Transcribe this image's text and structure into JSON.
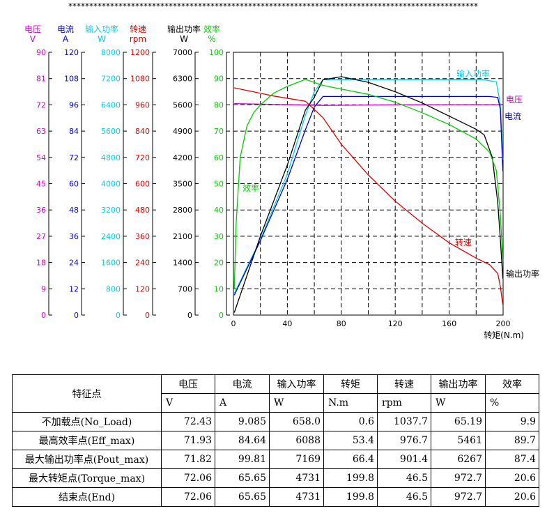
{
  "banner": "**************************************************************************************************",
  "chart_data": {
    "type": "line",
    "xlabel": "转矩(N.m)",
    "xlim": [
      0,
      200
    ],
    "x_ticks": [
      "0",
      "40",
      "80",
      "120",
      "160",
      "200"
    ],
    "grid": true,
    "y_axes": [
      {
        "name": "电压",
        "unit": "V",
        "color": "#cc00cc",
        "range": [
          0,
          90
        ],
        "ticks": [
          "0",
          "9",
          "18",
          "27",
          "36",
          "45",
          "54",
          "63",
          "72",
          "81",
          "90"
        ]
      },
      {
        "name": "电流",
        "unit": "A",
        "color": "#0000cc",
        "range": [
          0,
          120
        ],
        "ticks": [
          "0",
          "12",
          "24",
          "36",
          "48",
          "60",
          "72",
          "84",
          "96",
          "108",
          "120"
        ]
      },
      {
        "name": "输入功率",
        "unit": "W",
        "color": "#00ccee",
        "range": [
          0,
          8000
        ],
        "ticks": [
          "0",
          "800",
          "1600",
          "2400",
          "3200",
          "4000",
          "4800",
          "5600",
          "6400",
          "7200",
          "8000"
        ]
      },
      {
        "name": "转速",
        "unit": "rpm",
        "color": "#dd0000",
        "range": [
          0,
          1200
        ],
        "ticks": [
          "0",
          "120",
          "240",
          "360",
          "480",
          "600",
          "720",
          "840",
          "960",
          "1080",
          "1200"
        ]
      },
      {
        "name": "输出功率",
        "unit": "W",
        "color": "#000000",
        "range": [
          0,
          7000
        ],
        "ticks": [
          "0",
          "700",
          "1400",
          "2100",
          "2800",
          "3500",
          "4200",
          "4900",
          "5600",
          "6300",
          "7000"
        ]
      },
      {
        "name": "效率",
        "unit": "%",
        "color": "#00cc00",
        "range": [
          0,
          100
        ],
        "ticks": [
          "0",
          "10",
          "20",
          "30",
          "40",
          "50",
          "60",
          "70",
          "80",
          "90",
          "100"
        ]
      }
    ],
    "series": [
      {
        "name": "输入功率",
        "axis": 2,
        "color": "#00ccee",
        "label": "输入功率",
        "x": [
          0.6,
          20,
          40,
          53.4,
          60,
          66.4,
          80,
          120,
          160,
          185,
          195,
          198,
          199.8
        ],
        "y": [
          658,
          2300,
          4300,
          6088,
          6800,
          7169,
          7169,
          7169,
          7169,
          7169,
          7100,
          6400,
          4731
        ]
      },
      {
        "name": "电压",
        "axis": 0,
        "color": "#cc00cc",
        "label": "电压",
        "x": [
          0.6,
          53.4,
          66.4,
          120,
          199.8
        ],
        "y": [
          72.43,
          71.93,
          71.82,
          72.0,
          72.06
        ]
      },
      {
        "name": "电流",
        "axis": 1,
        "color": "#0000cc",
        "label": "电流",
        "x": [
          0.6,
          20,
          40,
          53.4,
          60,
          66.4,
          80,
          120,
          160,
          190,
          196,
          198,
          199.8
        ],
        "y": [
          9.085,
          34,
          62,
          84.64,
          95,
          99.81,
          99.81,
          99.81,
          99.81,
          99.81,
          99.4,
          94,
          65.65
        ]
      },
      {
        "name": "转速",
        "axis": 3,
        "color": "#dd0000",
        "label": "转速",
        "x": [
          0.6,
          30,
          53.4,
          66.4,
          80,
          100,
          120,
          140,
          160,
          180,
          190,
          196,
          198,
          199.8
        ],
        "y": [
          1037.7,
          1000,
          976.7,
          901.4,
          780,
          640,
          520,
          420,
          330,
          260,
          230,
          190,
          130,
          46.5
        ]
      },
      {
        "name": "输出功率",
        "axis": 4,
        "color": "#000000",
        "label": "输出功率",
        "x": [
          0.6,
          20,
          40,
          53.4,
          60,
          66.4,
          80,
          100,
          120,
          140,
          160,
          180,
          186,
          192,
          196,
          198,
          199.8
        ],
        "y": [
          65.19,
          2100,
          4000,
          5461,
          5800,
          6267,
          6350,
          6200,
          5950,
          5650,
          5300,
          4950,
          4800,
          4200,
          3000,
          2000,
          972.7
        ]
      },
      {
        "name": "效率",
        "axis": 5,
        "color": "#00cc00",
        "label": "效率",
        "x": [
          0.6,
          2,
          5,
          10,
          15,
          20,
          30,
          40,
          53.4,
          60,
          66.4,
          80,
          100,
          120,
          140,
          160,
          180,
          190,
          195,
          198,
          199.8
        ],
        "y": [
          9.9,
          35,
          60,
          72,
          77,
          80,
          84.5,
          87,
          89.7,
          88.5,
          87.4,
          86,
          84,
          81,
          77,
          72.5,
          67,
          62,
          55,
          38,
          20.6
        ]
      }
    ]
  },
  "table": {
    "row_header": "特征点",
    "columns": [
      {
        "name": "电压",
        "unit": "V"
      },
      {
        "name": "电流",
        "unit": "A"
      },
      {
        "name": "输入功率",
        "unit": "W"
      },
      {
        "name": "转矩",
        "unit": "N.m"
      },
      {
        "name": "转速",
        "unit": "rpm"
      },
      {
        "name": "输出功率",
        "unit": "W"
      },
      {
        "name": "效率",
        "unit": "%"
      }
    ],
    "rows": [
      {
        "label": "不加载点(No_Load)",
        "values": [
          "72.43",
          "9.085",
          "658.0",
          "0.6",
          "1037.7",
          "65.19",
          "9.9"
        ]
      },
      {
        "label": "最高效率点(Eff_max)",
        "values": [
          "71.93",
          "84.64",
          "6088",
          "53.4",
          "976.7",
          "5461",
          "89.7"
        ]
      },
      {
        "label": "最大输出功率点(Pout_max)",
        "values": [
          "71.82",
          "99.81",
          "7169",
          "66.4",
          "901.4",
          "6267",
          "87.4"
        ]
      },
      {
        "label": "最大转矩点(Torque_max)",
        "values": [
          "72.06",
          "65.65",
          "4731",
          "199.8",
          "46.5",
          "972.7",
          "20.6"
        ]
      },
      {
        "label": "结束点(End)",
        "values": [
          "72.06",
          "65.65",
          "4731",
          "199.8",
          "46.5",
          "972.7",
          "20.6"
        ]
      }
    ]
  }
}
